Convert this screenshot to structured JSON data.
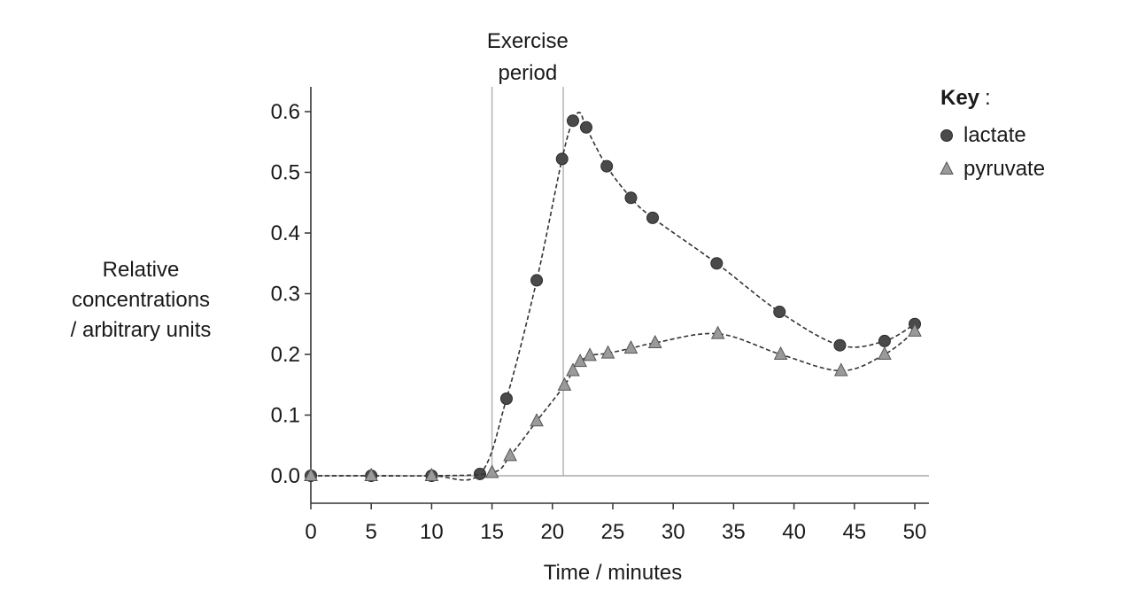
{
  "chart_data": {
    "type": "line",
    "title": "",
    "xlabel": "Time / minutes",
    "ylabel_lines": [
      "Relative",
      "concentrations",
      "/ arbitrary units"
    ],
    "xlim": [
      0,
      50
    ],
    "ylim": [
      -0.04,
      0.64
    ],
    "xticks": [
      0,
      5,
      10,
      15,
      20,
      25,
      30,
      35,
      40,
      45,
      50
    ],
    "yticks": [
      0.0,
      0.1,
      0.2,
      0.3,
      0.4,
      0.5,
      0.6
    ],
    "ytick_labels": [
      "0.0",
      "0.1",
      "0.2",
      "0.3",
      "0.4",
      "0.5",
      "0.6"
    ],
    "grid": false,
    "legend": {
      "title": "Key",
      "title_suffix": ":",
      "position": "top-right"
    },
    "annotation": {
      "text_lines": [
        "Exercise",
        "period"
      ],
      "x_start": 15,
      "x_end": 20.9
    },
    "series": [
      {
        "name": "lactate",
        "marker": "circle",
        "color": "#4a4a4a",
        "points": [
          [
            0,
            0.0
          ],
          [
            5,
            0.0
          ],
          [
            10,
            0.0
          ],
          [
            14,
            0.003
          ],
          [
            16.2,
            0.127
          ],
          [
            18.7,
            0.322
          ],
          [
            20.8,
            0.522
          ],
          [
            21.7,
            0.585
          ],
          [
            22.8,
            0.574
          ],
          [
            24.5,
            0.51
          ],
          [
            26.5,
            0.458
          ],
          [
            28.3,
            0.425
          ],
          [
            33.6,
            0.35
          ],
          [
            38.8,
            0.27
          ],
          [
            43.8,
            0.215
          ],
          [
            47.5,
            0.222
          ],
          [
            50,
            0.25
          ]
        ],
        "curve_peak": [
          22.3,
          0.598
        ]
      },
      {
        "name": "pyruvate",
        "marker": "triangle",
        "color": "#9a9a9a",
        "points": [
          [
            0,
            0.0
          ],
          [
            5,
            0.0
          ],
          [
            10,
            0.0
          ],
          [
            15,
            0.005
          ],
          [
            16.5,
            0.033
          ],
          [
            18.7,
            0.09
          ],
          [
            21,
            0.149
          ],
          [
            21.7,
            0.173
          ],
          [
            22.3,
            0.188
          ],
          [
            23.1,
            0.198
          ],
          [
            24.6,
            0.202
          ],
          [
            26.5,
            0.21
          ],
          [
            28.5,
            0.219
          ],
          [
            33.7,
            0.234
          ],
          [
            38.9,
            0.2
          ],
          [
            43.9,
            0.173
          ],
          [
            47.5,
            0.2
          ],
          [
            50,
            0.238
          ]
        ]
      }
    ]
  }
}
